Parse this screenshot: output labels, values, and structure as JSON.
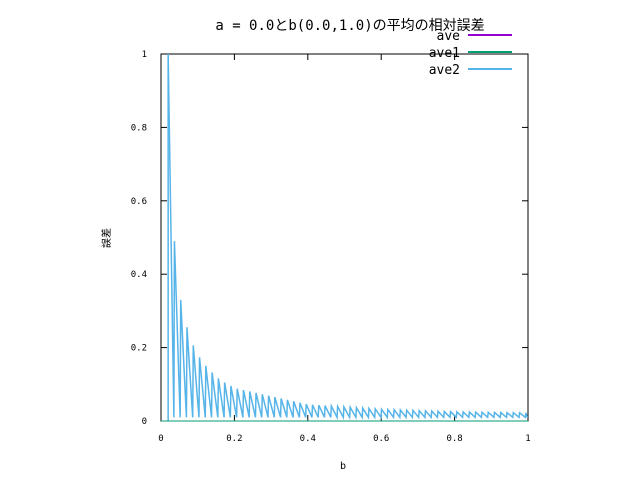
{
  "chart_data": {
    "type": "line",
    "title": "a = 0.0とb(0.0,1.0)の平均の相対誤差",
    "xlabel": "b",
    "ylabel": "誤差",
    "xlim": [
      0,
      1
    ],
    "ylim": [
      0,
      1
    ],
    "x_ticks": [
      "0",
      "0.2",
      "0.4",
      "0.6",
      "0.8",
      "1"
    ],
    "y_ticks": [
      "0",
      "0.2",
      "0.4",
      "0.6",
      "0.8",
      "1"
    ],
    "grid": false,
    "legend_position": "top-right",
    "series": [
      {
        "name": "ave",
        "color": "#9400d3",
        "values_note": "identically 0"
      },
      {
        "name": "ave1",
        "color": "#009e73",
        "values_note": "identically 0"
      },
      {
        "name": "ave2",
        "color": "#56b4e9",
        "peaks": [
          {
            "x": 0.0195,
            "y": 1.0
          },
          {
            "x": 0.0366,
            "y": 0.49
          },
          {
            "x": 0.0537,
            "y": 0.33
          },
          {
            "x": 0.0732,
            "y": 0.245
          },
          {
            "x": 0.0902,
            "y": 0.2
          },
          {
            "x": 0.1098,
            "y": 0.165
          },
          {
            "x": 0.1268,
            "y": 0.145
          },
          {
            "x": 0.1463,
            "y": 0.125
          },
          {
            "x": 0.1634,
            "y": 0.11
          },
          {
            "x": 0.1829,
            "y": 0.1
          },
          {
            "x": 0.2,
            "y": 0.09
          },
          {
            "x": 0.4,
            "y": 0.045
          },
          {
            "x": 0.6,
            "y": 0.032
          },
          {
            "x": 0.8,
            "y": 0.025
          },
          {
            "x": 1.0,
            "y": 0.022
          }
        ]
      }
    ]
  }
}
